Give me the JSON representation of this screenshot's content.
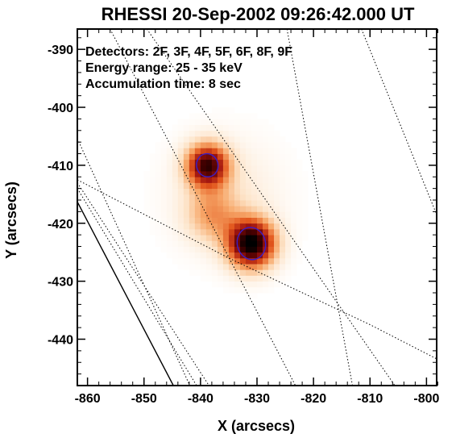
{
  "chart_data": {
    "type": "heatmap",
    "title": "RHESSI 20-Sep-2002 09:26:42.000 UT",
    "xlabel": "X (arcsecs)",
    "ylabel": "Y (arcsecs)",
    "xlim": [
      -861.8,
      -798.2
    ],
    "ylim": [
      -448,
      -386.5
    ],
    "xticks": [
      -860,
      -850,
      -840,
      -830,
      -820,
      -810,
      -800
    ],
    "yticks": [
      -440,
      -430,
      -420,
      -410,
      -400,
      -390
    ],
    "grid": false,
    "annotations": [
      "Detectors: 2F, 3F, 4F, 5F, 6F, 8F, 9F",
      "Energy range: 25 - 35 keV",
      "Accumulation time: 8 sec"
    ],
    "colormap": [
      "#ffffff",
      "#fde3c7",
      "#f7a86a",
      "#e2561c",
      "#a11510",
      "#4a0000",
      "#000000"
    ],
    "sources": [
      {
        "x": -831.0,
        "y": -423.5,
        "sigma": 2.9,
        "peak": 1.0
      },
      {
        "x": -838.8,
        "y": -410.0,
        "sigma": 2.6,
        "peak": 0.82
      },
      {
        "x": -838.0,
        "y": -418.5,
        "sigma": 3.2,
        "peak": 0.28
      },
      {
        "x": -835.5,
        "y": -415.0,
        "sigma": 6.5,
        "peak": 0.12
      }
    ],
    "contours": [
      {
        "x": -831.0,
        "y": -423.5,
        "rx": 2.5,
        "ry": 2.8,
        "color": "#3a1ec8"
      },
      {
        "x": -838.8,
        "y": -410.0,
        "rx": 1.9,
        "ry": 2.0,
        "color": "#3a1ec8"
      }
    ],
    "limb_lines": [
      {
        "style": "solid",
        "points": [
          [
            -861.8,
            -416.3
          ],
          [
            -844.8,
            -448
          ]
        ]
      },
      {
        "style": "dotted",
        "points": [
          [
            -861.8,
            -405.4
          ],
          [
            -841.9,
            -448
          ]
        ]
      },
      {
        "style": "dotted",
        "points": [
          [
            -861.8,
            -413.0
          ],
          [
            -838.5,
            -448
          ]
        ]
      },
      {
        "style": "dotted",
        "points": [
          [
            -861.8,
            -414.0
          ],
          [
            -840.7,
            -448
          ]
        ]
      },
      {
        "style": "dotted",
        "points": [
          [
            -861.8,
            -412.5
          ],
          [
            -835,
            -426
          ],
          [
            -810,
            -437.5
          ],
          [
            -798.2,
            -443.4
          ]
        ]
      },
      {
        "style": "dotted",
        "points": [
          [
            -849.5,
            -386.5
          ],
          [
            -805.6,
            -448
          ]
        ]
      },
      {
        "style": "dotted",
        "points": [
          [
            -824.7,
            -386.5
          ],
          [
            -813.1,
            -448
          ]
        ]
      },
      {
        "style": "dotted",
        "points": [
          [
            -856.0,
            -386.5
          ],
          [
            -823.2,
            -448
          ]
        ]
      },
      {
        "style": "dotted",
        "points": [
          [
            -811.5,
            -386.5
          ],
          [
            -798.2,
            -418.5
          ]
        ]
      }
    ]
  }
}
